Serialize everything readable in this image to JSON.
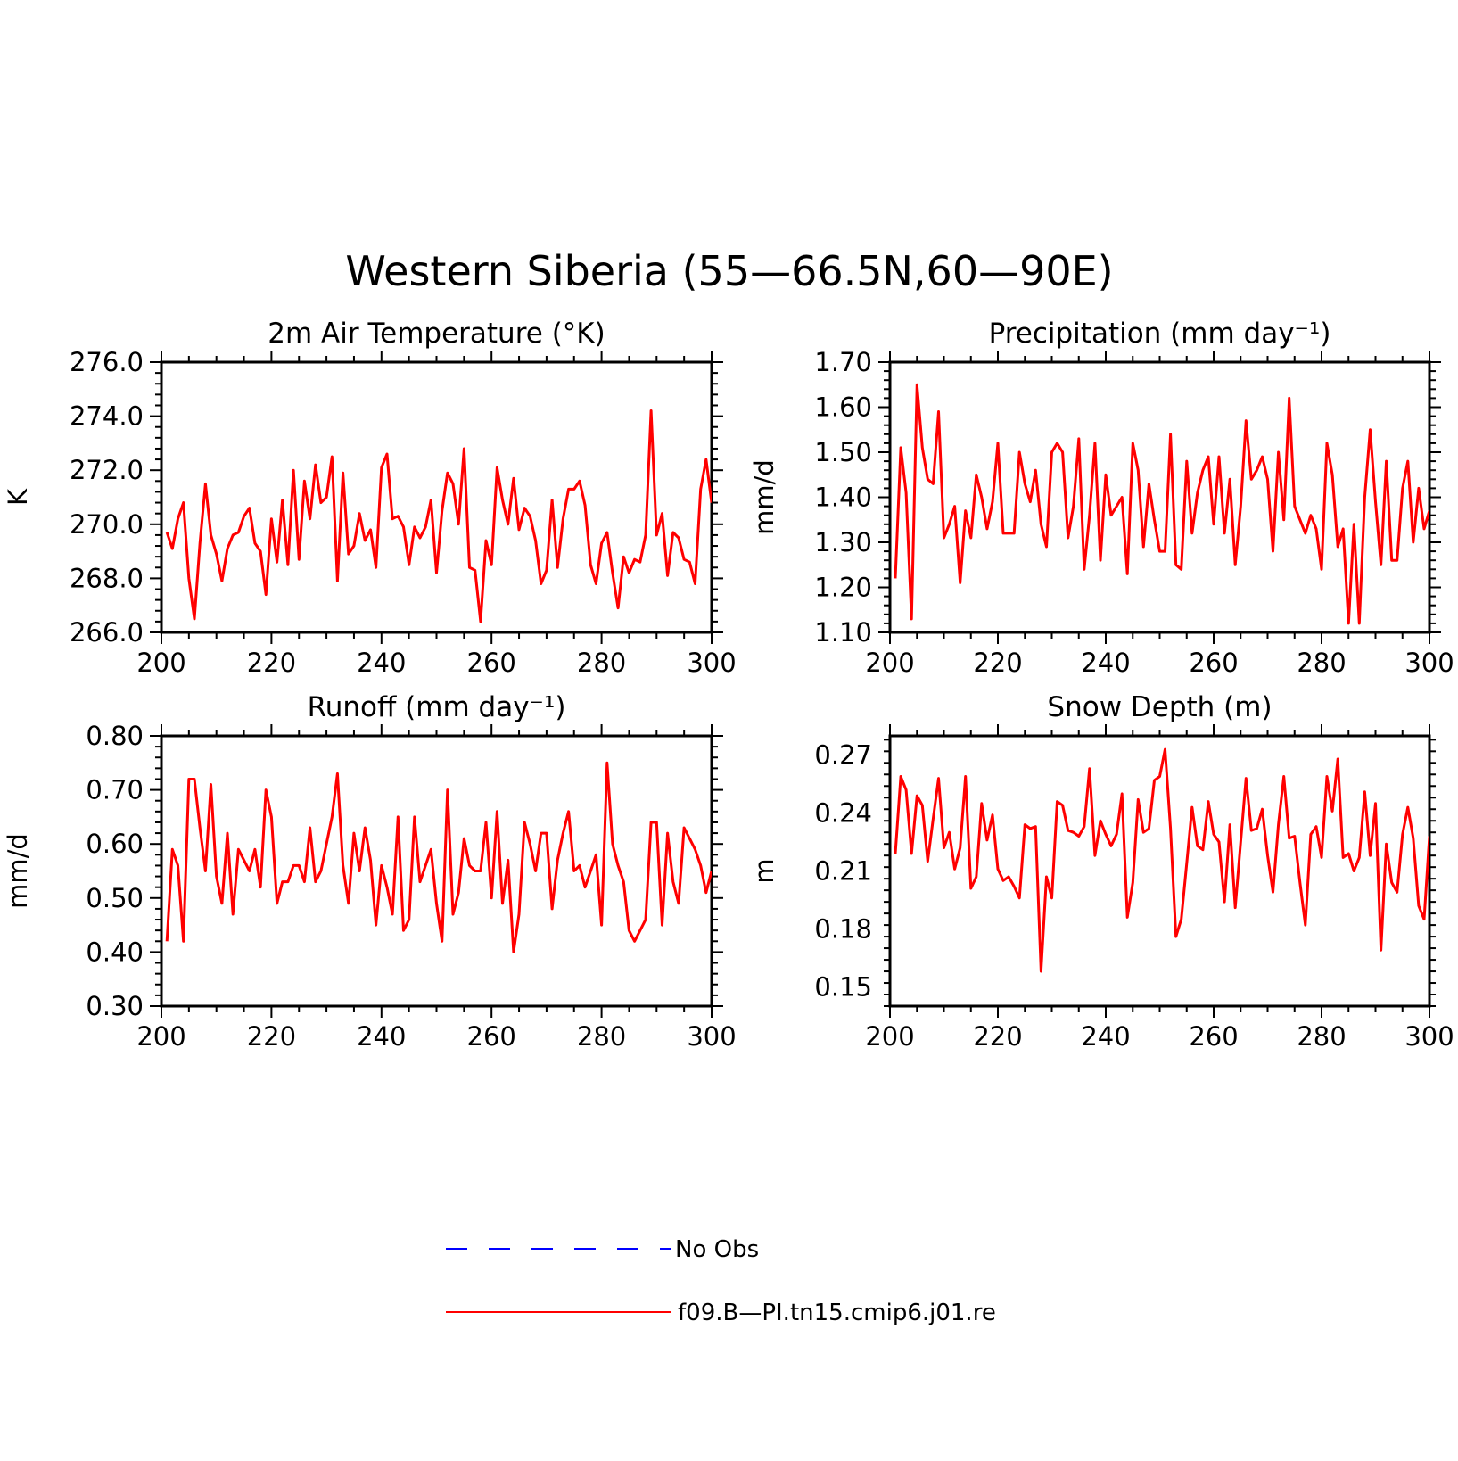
{
  "figure": {
    "title": "Western Siberia (55—66.5N,60—90E)",
    "legend": [
      {
        "label": "No Obs",
        "color": "#0000ff",
        "style": "dashed"
      },
      {
        "label": "f09.B—PI.tn15.cmip6.j01.re",
        "color": "#ff0000",
        "style": "solid"
      }
    ]
  },
  "chart_data": [
    {
      "type": "line",
      "title": "2m Air Temperature (°K)",
      "ylabel": "K",
      "xlim": [
        200,
        300
      ],
      "ylim": [
        266.0,
        276.0
      ],
      "xticks": [
        "200",
        "220",
        "240",
        "260",
        "280",
        "300"
      ],
      "yticks": [
        "266.0",
        "268.0",
        "270.0",
        "272.0",
        "274.0",
        "276.0"
      ],
      "series": [
        {
          "color": "#ff0000",
          "x_start": 201,
          "values": [
            269.7,
            269.1,
            270.2,
            270.8,
            268.0,
            266.5,
            269.3,
            271.5,
            269.6,
            268.9,
            267.9,
            269.1,
            269.6,
            269.7,
            270.3,
            270.6,
            269.3,
            269.0,
            267.4,
            270.2,
            268.6,
            270.9,
            268.5,
            272.0,
            268.7,
            271.6,
            270.2,
            272.2,
            270.8,
            271.0,
            272.5,
            267.9,
            271.9,
            268.9,
            269.2,
            270.4,
            269.4,
            269.8,
            268.4,
            272.1,
            272.6,
            270.2,
            270.3,
            269.9,
            268.5,
            269.9,
            269.5,
            269.9,
            270.9,
            268.2,
            270.5,
            271.9,
            271.5,
            270.0,
            272.8,
            268.4,
            268.3,
            266.4,
            269.4,
            268.5,
            272.1,
            270.9,
            270.0,
            271.7,
            269.8,
            270.6,
            270.3,
            269.4,
            267.8,
            268.3,
            270.9,
            268.4,
            270.2,
            271.3,
            271.3,
            271.6,
            270.7,
            268.5,
            267.8,
            269.3,
            269.7,
            268.2,
            266.9,
            268.8,
            268.2,
            268.7,
            268.6,
            269.6,
            274.2,
            269.6,
            270.4,
            268.1,
            269.7,
            269.5,
            268.7,
            268.6,
            267.8,
            271.3,
            272.4,
            270.8
          ]
        }
      ]
    },
    {
      "type": "line",
      "title": "Precipitation (mm day⁻¹)",
      "ylabel": "mm/d",
      "xlim": [
        200,
        300
      ],
      "ylim": [
        1.1,
        1.7
      ],
      "xticks": [
        "200",
        "220",
        "240",
        "260",
        "280",
        "300"
      ],
      "yticks": [
        "1.10",
        "1.20",
        "1.30",
        "1.40",
        "1.50",
        "1.60",
        "1.70"
      ],
      "series": [
        {
          "color": "#ff0000",
          "x_start": 201,
          "values": [
            1.22,
            1.51,
            1.41,
            1.13,
            1.65,
            1.51,
            1.44,
            1.43,
            1.59,
            1.31,
            1.34,
            1.38,
            1.21,
            1.37,
            1.31,
            1.45,
            1.4,
            1.33,
            1.39,
            1.52,
            1.32,
            1.32,
            1.32,
            1.5,
            1.43,
            1.39,
            1.46,
            1.34,
            1.29,
            1.5,
            1.52,
            1.5,
            1.31,
            1.38,
            1.53,
            1.24,
            1.36,
            1.52,
            1.26,
            1.45,
            1.36,
            1.38,
            1.4,
            1.23,
            1.52,
            1.46,
            1.29,
            1.43,
            1.35,
            1.28,
            1.28,
            1.54,
            1.25,
            1.24,
            1.48,
            1.32,
            1.41,
            1.46,
            1.49,
            1.34,
            1.49,
            1.32,
            1.44,
            1.25,
            1.38,
            1.57,
            1.44,
            1.46,
            1.49,
            1.44,
            1.28,
            1.5,
            1.35,
            1.62,
            1.38,
            1.35,
            1.32,
            1.36,
            1.33,
            1.24,
            1.52,
            1.45,
            1.29,
            1.33,
            1.12,
            1.34,
            1.12,
            1.4,
            1.55,
            1.39,
            1.25,
            1.48,
            1.26,
            1.26,
            1.42,
            1.48,
            1.3,
            1.42,
            1.33,
            1.37
          ]
        }
      ]
    },
    {
      "type": "line",
      "title": "Runoff (mm day⁻¹)",
      "ylabel": "mm/d",
      "xlim": [
        200,
        300
      ],
      "ylim": [
        0.3,
        0.8
      ],
      "xticks": [
        "200",
        "220",
        "240",
        "260",
        "280",
        "300"
      ],
      "yticks": [
        "0.30",
        "0.40",
        "0.50",
        "0.60",
        "0.70",
        "0.80"
      ],
      "series": [
        {
          "color": "#ff0000",
          "x_start": 201,
          "values": [
            0.42,
            0.59,
            0.56,
            0.42,
            0.72,
            0.72,
            0.63,
            0.55,
            0.71,
            0.54,
            0.49,
            0.62,
            0.47,
            0.59,
            0.57,
            0.55,
            0.59,
            0.52,
            0.7,
            0.65,
            0.49,
            0.53,
            0.53,
            0.56,
            0.56,
            0.53,
            0.63,
            0.53,
            0.55,
            0.6,
            0.65,
            0.73,
            0.56,
            0.49,
            0.62,
            0.55,
            0.63,
            0.57,
            0.45,
            0.56,
            0.52,
            0.47,
            0.65,
            0.44,
            0.46,
            0.65,
            0.53,
            0.56,
            0.59,
            0.49,
            0.42,
            0.7,
            0.47,
            0.51,
            0.61,
            0.56,
            0.55,
            0.55,
            0.64,
            0.5,
            0.66,
            0.49,
            0.57,
            0.4,
            0.47,
            0.64,
            0.6,
            0.55,
            0.62,
            0.62,
            0.48,
            0.57,
            0.62,
            0.66,
            0.55,
            0.56,
            0.52,
            0.55,
            0.58,
            0.45,
            0.75,
            0.6,
            0.56,
            0.53,
            0.44,
            0.42,
            0.44,
            0.46,
            0.64,
            0.64,
            0.45,
            0.62,
            0.53,
            0.49,
            0.63,
            0.61,
            0.59,
            0.56,
            0.51,
            0.55
          ]
        }
      ]
    },
    {
      "type": "line",
      "title": "Snow Depth (m)",
      "ylabel": "m",
      "xlim": [
        200,
        300
      ],
      "ylim": [
        0.14,
        0.28
      ],
      "xticks": [
        "200",
        "220",
        "240",
        "260",
        "280",
        "300"
      ],
      "yticks": [
        "0.15",
        "0.18",
        "0.21",
        "0.24",
        "0.27"
      ],
      "series": [
        {
          "color": "#ff0000",
          "x_start": 201,
          "values": [
            0.219,
            0.259,
            0.252,
            0.219,
            0.249,
            0.244,
            0.215,
            0.237,
            0.258,
            0.222,
            0.23,
            0.211,
            0.222,
            0.259,
            0.201,
            0.207,
            0.245,
            0.226,
            0.239,
            0.211,
            0.205,
            0.207,
            0.202,
            0.196,
            0.234,
            0.232,
            0.233,
            0.158,
            0.207,
            0.196,
            0.246,
            0.244,
            0.231,
            0.23,
            0.228,
            0.233,
            0.263,
            0.218,
            0.236,
            0.229,
            0.223,
            0.229,
            0.25,
            0.186,
            0.204,
            0.247,
            0.23,
            0.232,
            0.257,
            0.259,
            0.273,
            0.232,
            0.176,
            0.185,
            0.214,
            0.243,
            0.223,
            0.221,
            0.246,
            0.229,
            0.225,
            0.194,
            0.234,
            0.191,
            0.225,
            0.258,
            0.231,
            0.232,
            0.242,
            0.218,
            0.199,
            0.234,
            0.259,
            0.227,
            0.228,
            0.204,
            0.182,
            0.229,
            0.233,
            0.217,
            0.259,
            0.241,
            0.268,
            0.217,
            0.219,
            0.21,
            0.217,
            0.251,
            0.218,
            0.245,
            0.169,
            0.224,
            0.204,
            0.199,
            0.229,
            0.243,
            0.227,
            0.192,
            0.185,
            0.228
          ]
        }
      ]
    }
  ]
}
